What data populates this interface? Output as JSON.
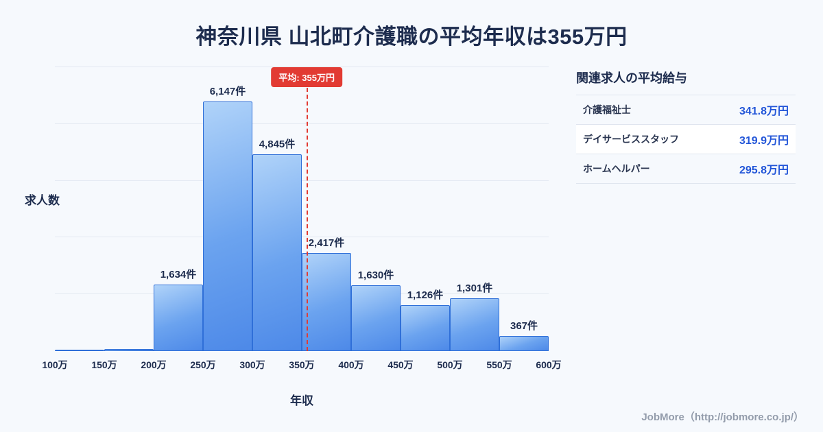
{
  "chart_data": {
    "type": "bar",
    "title": "神奈川県 山北町介護職の平均年収は355万円",
    "xlabel": "年収",
    "ylabel": "求人数",
    "x_tick_labels": [
      "100万",
      "150万",
      "200万",
      "250万",
      "300万",
      "350万",
      "400万",
      "450万",
      "500万",
      "550万",
      "600万"
    ],
    "x_range": [
      100,
      600
    ],
    "ylim": [
      0,
      7000
    ],
    "grid": true,
    "bins": [
      {
        "range": "100万-150万",
        "value": 30,
        "label": ""
      },
      {
        "range": "150万-200万",
        "value": 50,
        "label": ""
      },
      {
        "range": "200万-250万",
        "value": 1634,
        "label": "1,634件"
      },
      {
        "range": "250万-300万",
        "value": 6147,
        "label": "6,147件"
      },
      {
        "range": "300万-350万",
        "value": 4845,
        "label": "4,845件"
      },
      {
        "range": "350万-400万",
        "value": 2417,
        "label": "2,417件"
      },
      {
        "range": "400万-450万",
        "value": 1630,
        "label": "1,630件"
      },
      {
        "range": "450万-500万",
        "value": 1126,
        "label": "1,126件"
      },
      {
        "range": "500万-550万",
        "value": 1301,
        "label": "1,301件"
      },
      {
        "range": "550万-600万",
        "value": 367,
        "label": "367件"
      }
    ],
    "average_line": {
      "value": 355,
      "label": "平均: 355万円",
      "color": "#e23b33"
    },
    "bar_colors": {
      "fill_top": "#b0d3f9",
      "fill_bottom": "#4d89e8",
      "border": "#2f6fd8"
    }
  },
  "related_panel": {
    "heading": "関連求人の平均給与",
    "value_color": "#2356d8",
    "rows": [
      {
        "job": "介護福祉士",
        "salary": "341.8万円"
      },
      {
        "job": "デイサービススタッフ",
        "salary": "319.9万円"
      },
      {
        "job": "ホームヘルパー",
        "salary": "295.8万円"
      }
    ]
  },
  "footer": {
    "attribution": "JobMore（http://jobmore.co.jp/）"
  }
}
